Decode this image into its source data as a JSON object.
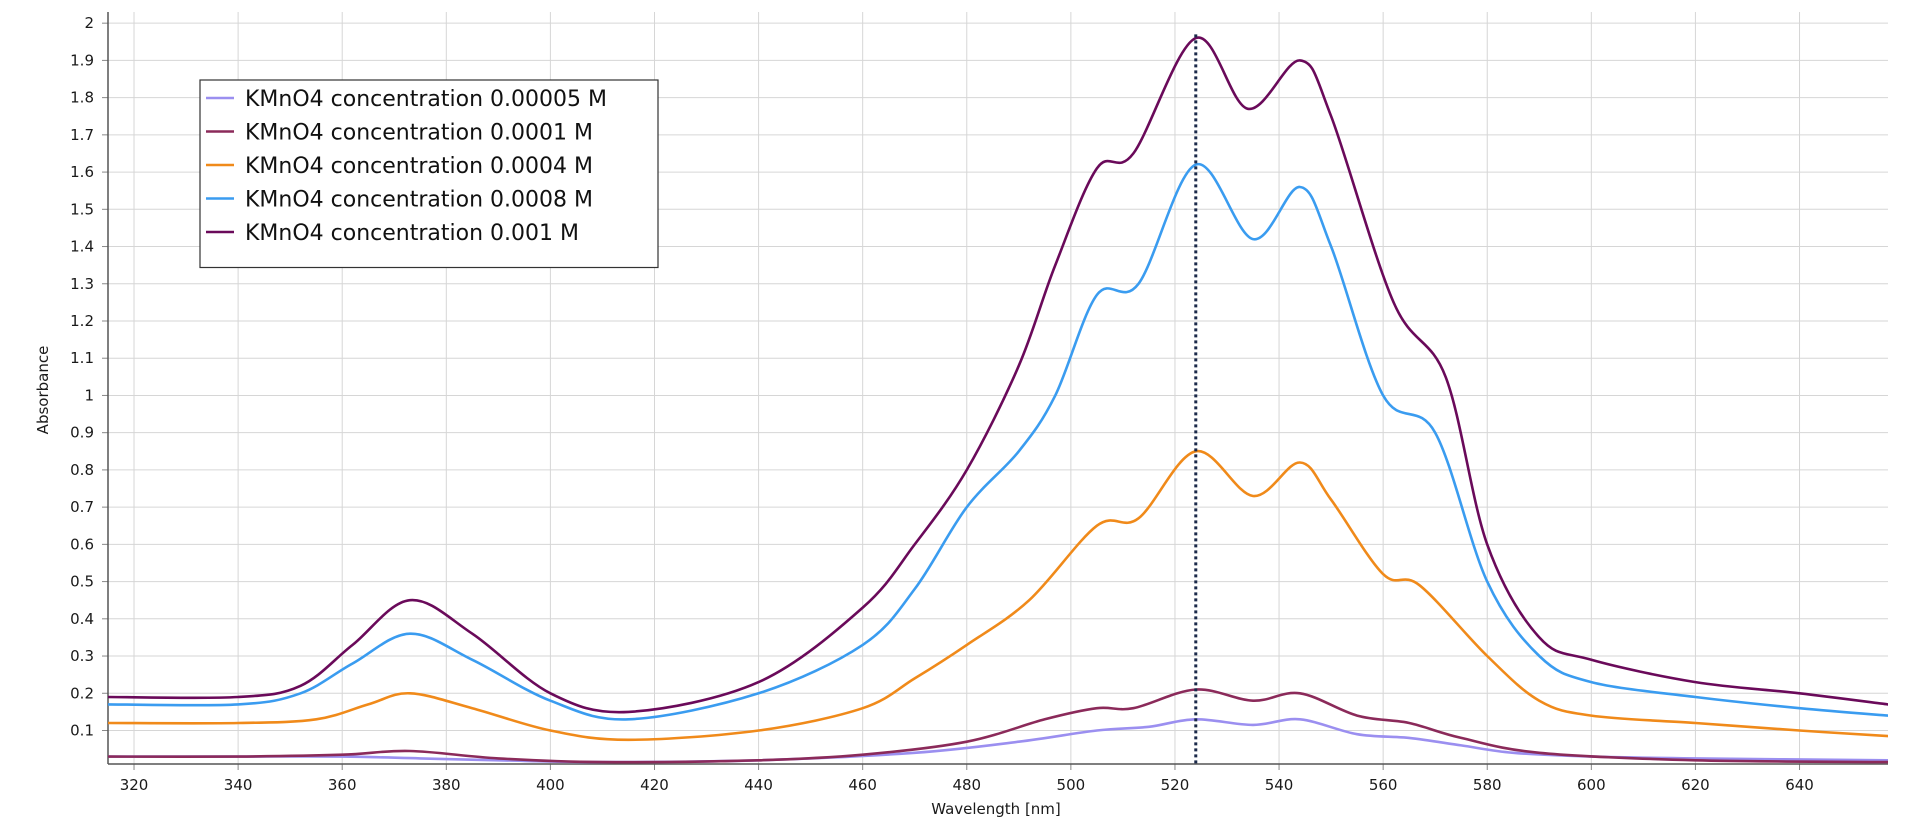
{
  "chart_data": {
    "type": "line",
    "title": "",
    "xlabel": "Wavelength [nm]",
    "ylabel": "Absorbance",
    "xlim": [
      315,
      657
    ],
    "ylim": [
      0.01,
      2.03
    ],
    "x_ticks": [
      320,
      340,
      360,
      380,
      400,
      420,
      440,
      460,
      480,
      500,
      520,
      540,
      560,
      580,
      600,
      620,
      640
    ],
    "y_ticks": [
      0.1,
      0.2,
      0.3,
      0.4,
      0.5,
      0.6,
      0.7,
      0.8,
      0.9,
      1,
      1.1,
      1.2,
      1.3,
      1.4,
      1.5,
      1.6,
      1.7,
      1.8,
      1.9,
      2
    ],
    "grid": true,
    "legend_position": "top-left",
    "reference_line": {
      "x": 524,
      "style": "dotted",
      "color": "#1b2a4a"
    },
    "series": [
      {
        "name": "KMnO4 concentration 0.00005 M",
        "color": "#9b8ff0",
        "x": [
          315,
          340,
          360,
          375,
          390,
          410,
          440,
          470,
          490,
          505,
          515,
          524,
          535,
          544,
          555,
          565,
          575,
          585,
          600,
          620,
          657
        ],
        "y": [
          0.03,
          0.03,
          0.03,
          0.025,
          0.02,
          0.015,
          0.02,
          0.04,
          0.07,
          0.1,
          0.11,
          0.13,
          0.115,
          0.13,
          0.09,
          0.08,
          0.06,
          0.04,
          0.03,
          0.025,
          0.02
        ]
      },
      {
        "name": "KMnO4 concentration 0.0001 M",
        "color": "#8b2a5a",
        "x": [
          315,
          340,
          360,
          373,
          390,
          410,
          440,
          460,
          480,
          495,
          505,
          512,
          524,
          535,
          544,
          555,
          565,
          575,
          590,
          620,
          657
        ],
        "y": [
          0.03,
          0.03,
          0.035,
          0.045,
          0.025,
          0.015,
          0.02,
          0.035,
          0.07,
          0.13,
          0.16,
          0.16,
          0.21,
          0.18,
          0.2,
          0.14,
          0.12,
          0.08,
          0.04,
          0.02,
          0.015
        ]
      },
      {
        "name": "KMnO4 concentration 0.0004 M",
        "color": "#f08a1a",
        "x": [
          315,
          340,
          355,
          365,
          373,
          385,
          400,
          415,
          440,
          460,
          470,
          480,
          492,
          505,
          513,
          524,
          535,
          544,
          550,
          560,
          567,
          580,
          590,
          600,
          620,
          640,
          657
        ],
        "y": [
          0.12,
          0.12,
          0.13,
          0.17,
          0.2,
          0.16,
          0.1,
          0.075,
          0.1,
          0.16,
          0.24,
          0.33,
          0.45,
          0.65,
          0.67,
          0.85,
          0.73,
          0.82,
          0.72,
          0.52,
          0.49,
          0.3,
          0.18,
          0.14,
          0.12,
          0.1,
          0.085
        ]
      },
      {
        "name": "KMnO4 concentration 0.0008 M",
        "color": "#3a9cf0",
        "x": [
          315,
          340,
          352,
          362,
          373,
          385,
          400,
          415,
          440,
          460,
          470,
          480,
          490,
          497,
          505,
          513,
          524,
          535,
          544,
          550,
          560,
          570,
          580,
          590,
          600,
          620,
          640,
          657
        ],
        "y": [
          0.17,
          0.17,
          0.2,
          0.28,
          0.36,
          0.29,
          0.18,
          0.13,
          0.2,
          0.33,
          0.48,
          0.7,
          0.85,
          1.0,
          1.27,
          1.3,
          1.62,
          1.42,
          1.56,
          1.4,
          1.0,
          0.9,
          0.5,
          0.3,
          0.23,
          0.19,
          0.16,
          0.14
        ]
      },
      {
        "name": "KMnO4 concentration 0.001 M",
        "color": "#6a0a5a",
        "x": [
          315,
          340,
          352,
          362,
          373,
          385,
          400,
          415,
          440,
          460,
          470,
          480,
          490,
          497,
          505,
          512,
          524,
          534,
          544,
          550,
          562,
          572,
          580,
          590,
          600,
          620,
          640,
          657
        ],
        "y": [
          0.19,
          0.19,
          0.22,
          0.33,
          0.45,
          0.36,
          0.2,
          0.15,
          0.23,
          0.43,
          0.6,
          0.8,
          1.08,
          1.35,
          1.61,
          1.65,
          1.96,
          1.77,
          1.9,
          1.75,
          1.25,
          1.05,
          0.6,
          0.35,
          0.29,
          0.23,
          0.2,
          0.17
        ]
      }
    ]
  }
}
